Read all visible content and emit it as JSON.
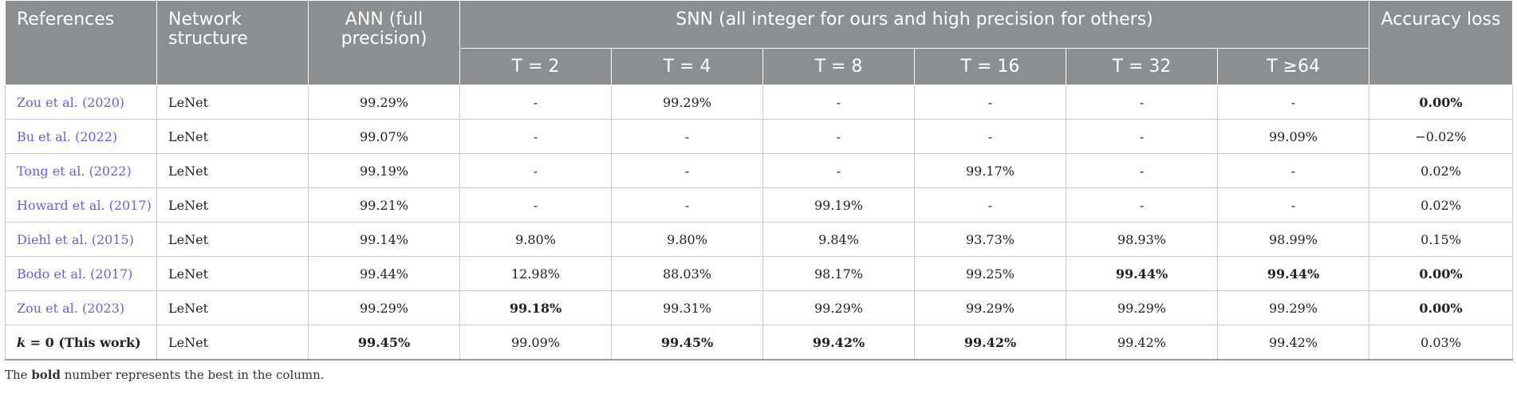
{
  "table": {
    "headers": {
      "references": "References",
      "network_structure": "Network structure",
      "ann": "ANN (full precision)",
      "snn": "SNN (all integer for ours and high precision for others)",
      "accuracy_loss": "Accuracy loss",
      "timesteps": [
        "T = 2",
        "T = 4",
        "T = 8",
        "T = 16",
        "T = 32",
        "T ≥64"
      ]
    },
    "rows": [
      {
        "ref": "Zou et al. (2020)",
        "net": "LeNet",
        "ann": "99.29%",
        "t": [
          "-",
          "99.29%",
          "-",
          "-",
          "-",
          "-"
        ],
        "loss": "0.00%",
        "bold": [
          "loss"
        ]
      },
      {
        "ref": "Bu et al. (2022)",
        "net": "LeNet",
        "ann": "99.07%",
        "t": [
          "-",
          "-",
          "-",
          "-",
          "-",
          "99.09%"
        ],
        "loss": "−0.02%",
        "bold": []
      },
      {
        "ref": "Tong et al. (2022)",
        "net": "LeNet",
        "ann": "99.19%",
        "t": [
          "-",
          "-",
          "-",
          "99.17%",
          "-",
          "-"
        ],
        "loss": "0.02%",
        "bold": []
      },
      {
        "ref": "Howard et al. (2017)",
        "net": "LeNet",
        "ann": "99.21%",
        "t": [
          "-",
          "-",
          "99.19%",
          "-",
          "-",
          "-"
        ],
        "loss": "0.02%",
        "bold": []
      },
      {
        "ref": "Diehl et al. (2015)",
        "net": "LeNet",
        "ann": "99.14%",
        "t": [
          "9.80%",
          "9.80%",
          "9.84%",
          "93.73%",
          "98.93%",
          "98.99%"
        ],
        "loss": "0.15%",
        "bold": []
      },
      {
        "ref": "Bodo et al. (2017)",
        "net": "LeNet",
        "ann": "99.44%",
        "t": [
          "12.98%",
          "88.03%",
          "98.17%",
          "99.25%",
          "99.44%",
          "99.44%"
        ],
        "loss": "0.00%",
        "bold": [
          "t4",
          "t5",
          "loss"
        ]
      },
      {
        "ref": "Zou et al. (2023)",
        "net": "LeNet",
        "ann": "99.29%",
        "t": [
          "99.18%",
          "99.31%",
          "99.29%",
          "99.29%",
          "99.29%",
          "99.29%"
        ],
        "loss": "0.00%",
        "bold": [
          "t0",
          "loss"
        ]
      },
      {
        "ref_k": "k",
        "ref_eq": " = 0 (This work)",
        "net": "LeNet",
        "ann": "99.45%",
        "t": [
          "99.09%",
          "99.45%",
          "99.42%",
          "99.42%",
          "99.42%",
          "99.42%"
        ],
        "loss": "0.03%",
        "bold": [
          "ann",
          "t1",
          "t2",
          "t3"
        ]
      }
    ]
  },
  "footnote": {
    "pre": "The ",
    "bold": "bold",
    "post": " number represents the best in the column."
  }
}
